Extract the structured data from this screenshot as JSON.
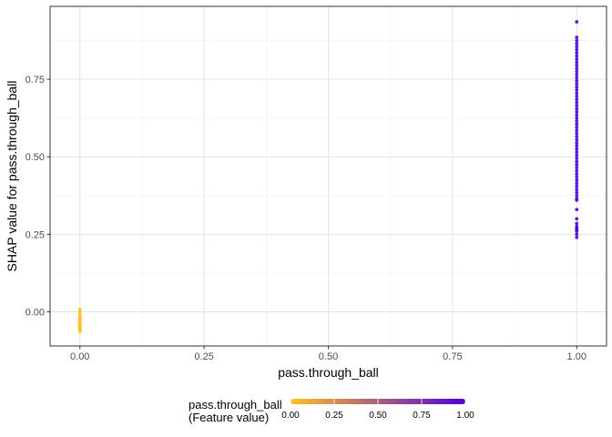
{
  "chart_data": {
    "type": "scatter",
    "title": "",
    "xlabel": "pass.through_ball",
    "ylabel": "SHAP value for pass.through_ball",
    "xlim": [
      -0.06,
      1.06
    ],
    "ylim": [
      -0.11,
      0.985
    ],
    "x_ticks": [
      0.0,
      0.25,
      0.5,
      0.75,
      1.0
    ],
    "x_tick_labels": [
      "0.00",
      "0.25",
      "0.50",
      "0.75",
      "1.00"
    ],
    "y_ticks": [
      0.0,
      0.25,
      0.5,
      0.75
    ],
    "y_tick_labels": [
      "0.00",
      "0.25",
      "0.50",
      "0.75"
    ],
    "grid": true,
    "legend_placement": "bottom",
    "color_scale": {
      "low_color": "#FFC125",
      "high_color": "#5000D8",
      "range": [
        0.0,
        1.0
      ],
      "ticks": [
        0.0,
        0.25,
        0.5,
        0.75,
        1.0
      ],
      "tick_labels": [
        "0.00",
        "0.25",
        "0.50",
        "0.75",
        "1.00"
      ]
    },
    "series": [
      {
        "feature_value": 0.0,
        "x": [
          0,
          0,
          0,
          0,
          0,
          0,
          0,
          0,
          0,
          0,
          0,
          0,
          0,
          0,
          0,
          0,
          0,
          0,
          0,
          0,
          0,
          0
        ],
        "y": [
          0.008,
          0.0,
          -0.008,
          -0.014,
          -0.018,
          -0.022,
          -0.025,
          -0.028,
          -0.031,
          -0.034,
          -0.037,
          -0.04,
          -0.042,
          -0.044,
          -0.046,
          -0.048,
          -0.05,
          -0.052,
          -0.054,
          -0.057,
          -0.06,
          -0.063
        ]
      },
      {
        "feature_value": 1.0,
        "x": [
          1,
          1,
          1,
          1,
          1,
          1,
          1,
          1,
          1,
          1,
          1,
          1,
          1,
          1,
          1,
          1,
          1,
          1,
          1,
          1,
          1,
          1,
          1,
          1,
          1,
          1,
          1,
          1,
          1,
          1,
          1,
          1,
          1,
          1,
          1,
          1,
          1,
          1,
          1,
          1,
          1,
          1,
          1,
          1,
          1,
          1,
          1,
          1,
          1,
          1,
          1,
          1,
          1,
          1,
          1,
          1,
          1,
          1,
          1,
          1,
          1,
          1,
          1,
          1
        ],
        "y": [
          0.935,
          0.885,
          0.875,
          0.865,
          0.855,
          0.845,
          0.835,
          0.825,
          0.815,
          0.805,
          0.795,
          0.785,
          0.775,
          0.765,
          0.755,
          0.745,
          0.735,
          0.725,
          0.715,
          0.705,
          0.695,
          0.685,
          0.675,
          0.665,
          0.655,
          0.645,
          0.635,
          0.625,
          0.615,
          0.605,
          0.595,
          0.585,
          0.575,
          0.565,
          0.555,
          0.545,
          0.535,
          0.525,
          0.515,
          0.505,
          0.495,
          0.485,
          0.475,
          0.465,
          0.455,
          0.445,
          0.435,
          0.425,
          0.415,
          0.405,
          0.395,
          0.385,
          0.375,
          0.365,
          0.36,
          0.33,
          0.3,
          0.285,
          0.275,
          0.27,
          0.265,
          0.26,
          0.25,
          0.24
        ]
      }
    ]
  }
}
